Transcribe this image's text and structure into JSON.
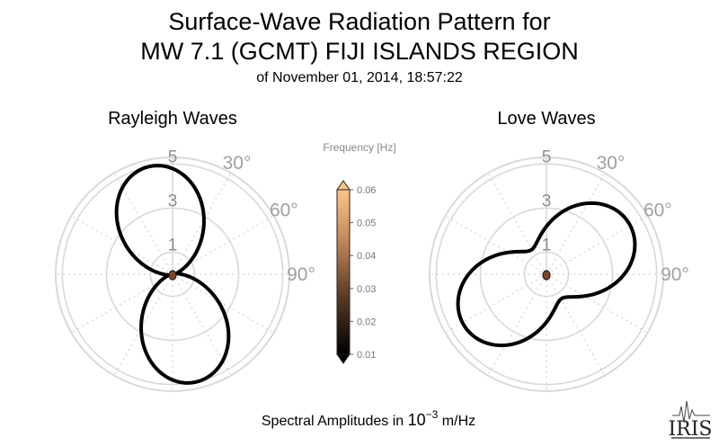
{
  "title": {
    "line1": "Surface-Wave Radiation Pattern for",
    "line2": "MW 7.1 (GCMT) FIJI ISLANDS REGION",
    "line3": "of November 01, 2014, 18:57:22"
  },
  "footer": {
    "prefix": "Spectral Amplitudes in ",
    "base": "10",
    "exponent": "−3",
    "unit": " m/Hz"
  },
  "logo": {
    "text": "IRIS"
  },
  "colors": {
    "grid": "#d9d9d9",
    "curve": "#000000",
    "colorbar_low": "#000000",
    "colorbar_high": "#ffc48a"
  },
  "chart_data": [
    {
      "type": "polar-line",
      "title": "Rayleigh Waves",
      "theta_zero": "north",
      "theta_direction": "clockwise",
      "r_ticks": [
        1,
        3,
        5
      ],
      "r_max": 5.3,
      "angle_ticks": [
        30,
        60,
        90
      ],
      "angle_tick_suffix": "°",
      "series": [
        {
          "frequency_range_hz": [
            0.01,
            0.06
          ],
          "lobes": [
            {
              "azimuth_deg": -12,
              "max_amplitude": 5.0
            },
            {
              "azimuth_deg": 168,
              "max_amplitude": 5.0
            }
          ],
          "min_amplitude": 0.2,
          "null_azimuths_deg": [
            78,
            258
          ]
        }
      ]
    },
    {
      "type": "polar-line",
      "title": "Love Waves",
      "theta_zero": "north",
      "theta_direction": "clockwise",
      "r_ticks": [
        1,
        3,
        5
      ],
      "r_max": 5.3,
      "angle_ticks": [
        30,
        60,
        90
      ],
      "angle_tick_suffix": "°",
      "series": [
        {
          "frequency_range_hz": [
            0.01,
            0.06
          ],
          "lobes": [
            {
              "azimuth_deg": 58,
              "max_amplitude": 4.4
            },
            {
              "azimuth_deg": 238,
              "max_amplitude": 4.4
            }
          ],
          "min_amplitude": 1.3,
          "null_azimuths_deg": [
            148,
            328
          ]
        }
      ]
    },
    {
      "type": "colorbar",
      "title": "Frequency [Hz]",
      "ticks": [
        "0.06",
        "0.05",
        "0.04",
        "0.03",
        "0.02",
        "0.01"
      ],
      "range": [
        0.01,
        0.06
      ],
      "extend": "both"
    }
  ]
}
